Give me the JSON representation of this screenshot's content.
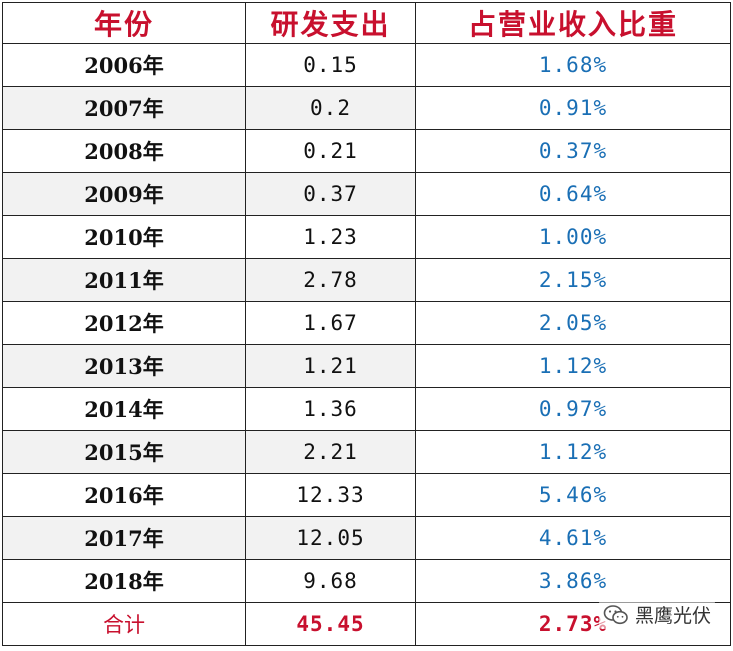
{
  "table": {
    "headers": [
      "年份",
      "研发支出",
      "占营业收入比重"
    ],
    "rows": [
      {
        "year": "2006年",
        "rd": "0.15",
        "pct": "1.68%"
      },
      {
        "year": "2007年",
        "rd": "0.2",
        "pct": "0.91%"
      },
      {
        "year": "2008年",
        "rd": "0.21",
        "pct": "0.37%"
      },
      {
        "year": "2009年",
        "rd": "0.37",
        "pct": "0.64%"
      },
      {
        "year": "2010年",
        "rd": "1.23",
        "pct": "1.00%"
      },
      {
        "year": "2011年",
        "rd": "2.78",
        "pct": "2.15%"
      },
      {
        "year": "2012年",
        "rd": "1.67",
        "pct": "2.05%"
      },
      {
        "year": "2013年",
        "rd": "1.21",
        "pct": "1.12%"
      },
      {
        "year": "2014年",
        "rd": "1.36",
        "pct": "0.97%"
      },
      {
        "year": "2015年",
        "rd": "2.21",
        "pct": "1.12%"
      },
      {
        "year": "2016年",
        "rd": "12.33",
        "pct": "5.46%"
      },
      {
        "year": "2017年",
        "rd": "12.05",
        "pct": "4.61%"
      },
      {
        "year": "2018年",
        "rd": "9.68",
        "pct": "3.86%"
      }
    ],
    "total": {
      "label": "合计",
      "rd": "45.45",
      "pct": "2.73%"
    }
  },
  "watermark": {
    "text": "黑鹰光伏",
    "icon": "wechat-icon"
  },
  "colors": {
    "header_text": "#c8102e",
    "percent_text": "#1a6fb5",
    "total_text": "#c8102e",
    "stripe": "#f2f2f2"
  }
}
